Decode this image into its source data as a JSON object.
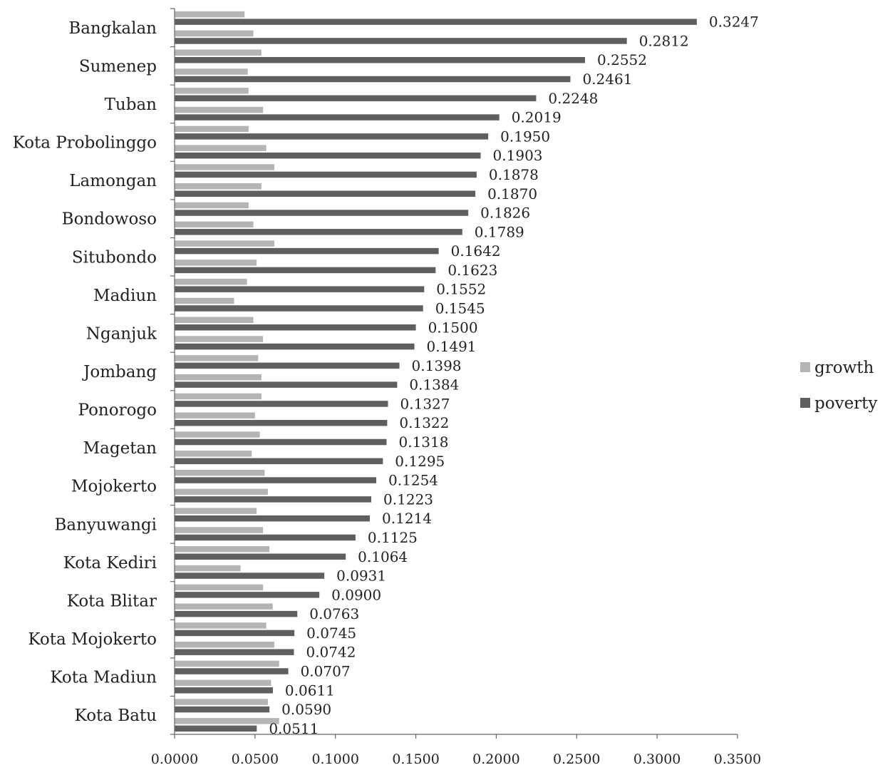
{
  "chart_data": {
    "type": "bar",
    "orientation": "horizontal",
    "xlim": [
      0,
      0.35
    ],
    "x_ticks": [
      "0.0000",
      "0.0500",
      "0.1000",
      "0.1500",
      "0.2000",
      "0.2500",
      "0.3000",
      "0.3500"
    ],
    "grid": false,
    "legend_position": "right",
    "category_labels": [
      "Bangkalan",
      "Sumenep",
      "Tuban",
      "Kota Probolinggo",
      "Lamongan",
      "Bondowoso",
      "Situbondo",
      "Madiun",
      "Nganjuk",
      "Jombang",
      "Ponorogo",
      "Magetan",
      "Mojokerto",
      "Banyuwangi",
      "Kota Kediri",
      "Kota Blitar",
      "Kota Mojokerto",
      "Kota Madiun",
      "Kota Batu"
    ],
    "series": [
      {
        "name": "growth",
        "color": "#b4b4b4",
        "values": [
          0.0435,
          0.049,
          0.054,
          0.0455,
          0.046,
          0.055,
          0.046,
          0.057,
          0.062,
          0.054,
          0.046,
          0.049,
          0.062,
          0.051,
          0.045,
          0.037,
          0.049,
          0.055,
          0.052,
          0.054,
          0.054,
          0.05,
          0.053,
          0.048,
          0.056,
          0.058,
          0.051,
          0.055,
          0.059,
          0.041,
          0.055,
          0.061,
          0.057,
          0.062,
          0.065,
          0.06,
          0.058,
          0.065
        ]
      },
      {
        "name": "poverty",
        "color": "#5f5f5f",
        "values": [
          0.3247,
          0.2812,
          0.2552,
          0.2461,
          0.2248,
          0.2019,
          0.195,
          0.1903,
          0.1878,
          0.187,
          0.1826,
          0.1789,
          0.1642,
          0.1623,
          0.1552,
          0.1545,
          0.15,
          0.1491,
          0.1398,
          0.1384,
          0.1327,
          0.1322,
          0.1318,
          0.1295,
          0.1254,
          0.1223,
          0.1214,
          0.1125,
          0.1064,
          0.0931,
          0.09,
          0.0763,
          0.0745,
          0.0742,
          0.0707,
          0.0611,
          0.059,
          0.0511
        ],
        "labels": [
          "0.3247",
          "0.2812",
          "0.2552",
          "0.2461",
          "0.2248",
          "0.2019",
          "0.1950",
          "0.1903",
          "0.1878",
          "0.1870",
          "0.1826",
          "0.1789",
          "0.1642",
          "0.1623",
          "0.1552",
          "0.1545",
          "0.1500",
          "0.1491",
          "0.1398",
          "0.1384",
          "0.1327",
          "0.1322",
          "0.1318",
          "0.1295",
          "0.1254",
          "0.1223",
          "0.1214",
          "0.1125",
          "0.1064",
          "0.0931",
          "0.0900",
          "0.0763",
          "0.0745",
          "0.0742",
          "0.0707",
          "0.0611",
          "0.0590",
          "0.0511"
        ]
      }
    ]
  }
}
